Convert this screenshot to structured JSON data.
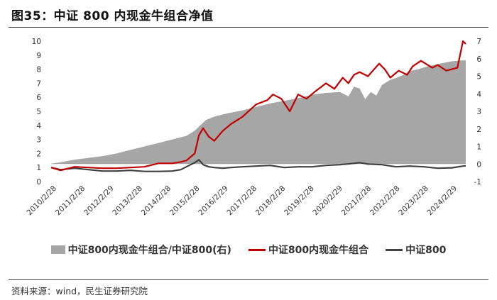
{
  "title": "图35：中证 800 内现金牛组合净值",
  "source": "资料来源：wind，民生证券研究院",
  "colors": {
    "area": "#a6a6a6",
    "portfolio": "#c00000",
    "index": "#404040"
  },
  "chart_data": {
    "type": "line",
    "title": "图35：中证 800 内现金牛组合净值",
    "x_tick_labels": [
      "2010/2/28",
      "2011/2/28",
      "2012/2/29",
      "2013/2/28",
      "2014/2/28",
      "2015/2/28",
      "2016/2/29",
      "2017/2/28",
      "2018/2/28",
      "2019/2/28",
      "2020/2/29",
      "2021/2/28",
      "2022/2/28",
      "2023/2/28",
      "2024/2/29"
    ],
    "y_left": {
      "range": [
        0,
        10
      ],
      "ticks": [
        "0",
        "1",
        "2",
        "3",
        "4",
        "5",
        "6",
        "7",
        "8",
        "9",
        "10"
      ]
    },
    "y_right": {
      "range": [
        -1,
        7
      ],
      "ticks": [
        "-1",
        "0",
        "1",
        "2",
        "3",
        "4",
        "5",
        "6",
        "7"
      ]
    },
    "legend_position": "bottom",
    "series": [
      {
        "name": "中证800内现金牛组合/中证800(右)",
        "kind": "area",
        "axis": "right",
        "x": [
          2010.16,
          2010.5,
          2011.0,
          2011.5,
          2012.0,
          2012.5,
          2013.0,
          2013.5,
          2014.0,
          2014.5,
          2015.0,
          2015.3,
          2015.5,
          2015.7,
          2016.0,
          2016.5,
          2017.0,
          2017.5,
          2018.0,
          2018.5,
          2019.0,
          2019.5,
          2020.0,
          2020.5,
          2020.8,
          2021.0,
          2021.2,
          2021.4,
          2021.6,
          2021.8,
          2022.0,
          2022.3,
          2022.5,
          2022.8,
          2023.0,
          2023.3,
          2023.6,
          2024.0,
          2024.5,
          2024.8,
          2025.0
        ],
        "values": [
          0.02,
          0.1,
          0.25,
          0.35,
          0.45,
          0.6,
          0.8,
          1.0,
          1.2,
          1.4,
          1.6,
          1.9,
          2.2,
          2.5,
          2.7,
          2.9,
          3.05,
          3.25,
          3.45,
          3.6,
          3.75,
          3.95,
          4.05,
          4.1,
          3.85,
          4.4,
          4.3,
          3.7,
          4.1,
          3.9,
          4.5,
          4.8,
          4.9,
          5.1,
          5.3,
          5.4,
          5.55,
          5.7,
          5.85,
          5.9,
          5.9
        ]
      },
      {
        "name": "中证800内现金牛组合",
        "kind": "line",
        "axis": "left",
        "x": [
          2010.16,
          2010.5,
          2011.0,
          2011.5,
          2012.0,
          2012.5,
          2013.0,
          2013.5,
          2014.0,
          2014.5,
          2014.8,
          2015.0,
          2015.3,
          2015.45,
          2015.6,
          2015.8,
          2016.0,
          2016.3,
          2016.6,
          2017.0,
          2017.5,
          2017.9,
          2018.1,
          2018.4,
          2018.7,
          2019.0,
          2019.3,
          2019.6,
          2020.0,
          2020.3,
          2020.6,
          2020.8,
          2021.0,
          2021.2,
          2021.5,
          2021.9,
          2022.1,
          2022.3,
          2022.6,
          2022.9,
          2023.1,
          2023.4,
          2023.8,
          2024.0,
          2024.3,
          2024.7,
          2024.9,
          2025.0
        ],
        "values": [
          1.0,
          0.8,
          1.05,
          1.0,
          0.95,
          0.95,
          1.0,
          1.05,
          1.3,
          1.3,
          1.4,
          1.5,
          2.0,
          3.3,
          3.8,
          3.2,
          2.9,
          3.6,
          4.1,
          4.6,
          5.5,
          5.8,
          6.2,
          5.9,
          5.0,
          6.2,
          5.9,
          6.4,
          7.0,
          6.6,
          7.4,
          7.0,
          7.6,
          7.8,
          7.5,
          8.4,
          8.0,
          7.4,
          7.9,
          7.6,
          8.2,
          8.6,
          8.1,
          8.3,
          7.9,
          8.1,
          10.0,
          9.8
        ]
      },
      {
        "name": "中证800",
        "kind": "line",
        "axis": "left",
        "x": [
          2010.16,
          2010.5,
          2011.0,
          2011.5,
          2012.0,
          2012.5,
          2013.0,
          2013.5,
          2014.0,
          2014.5,
          2014.8,
          2015.0,
          2015.3,
          2015.45,
          2015.6,
          2015.8,
          2016.0,
          2016.3,
          2016.6,
          2017.0,
          2017.5,
          2018.0,
          2018.5,
          2019.0,
          2019.5,
          2020.0,
          2020.5,
          2021.0,
          2021.2,
          2021.5,
          2022.0,
          2022.5,
          2023.0,
          2023.5,
          2024.0,
          2024.5,
          2024.9,
          2025.0
        ],
        "values": [
          1.0,
          0.85,
          0.95,
          0.85,
          0.75,
          0.75,
          0.8,
          0.72,
          0.72,
          0.75,
          0.85,
          1.05,
          1.35,
          1.55,
          1.2,
          1.05,
          1.0,
          0.95,
          1.0,
          1.05,
          1.1,
          1.15,
          1.0,
          1.05,
          1.05,
          1.15,
          1.2,
          1.3,
          1.35,
          1.25,
          1.2,
          1.05,
          1.1,
          1.05,
          0.95,
          0.98,
          1.1,
          1.12
        ]
      }
    ]
  }
}
